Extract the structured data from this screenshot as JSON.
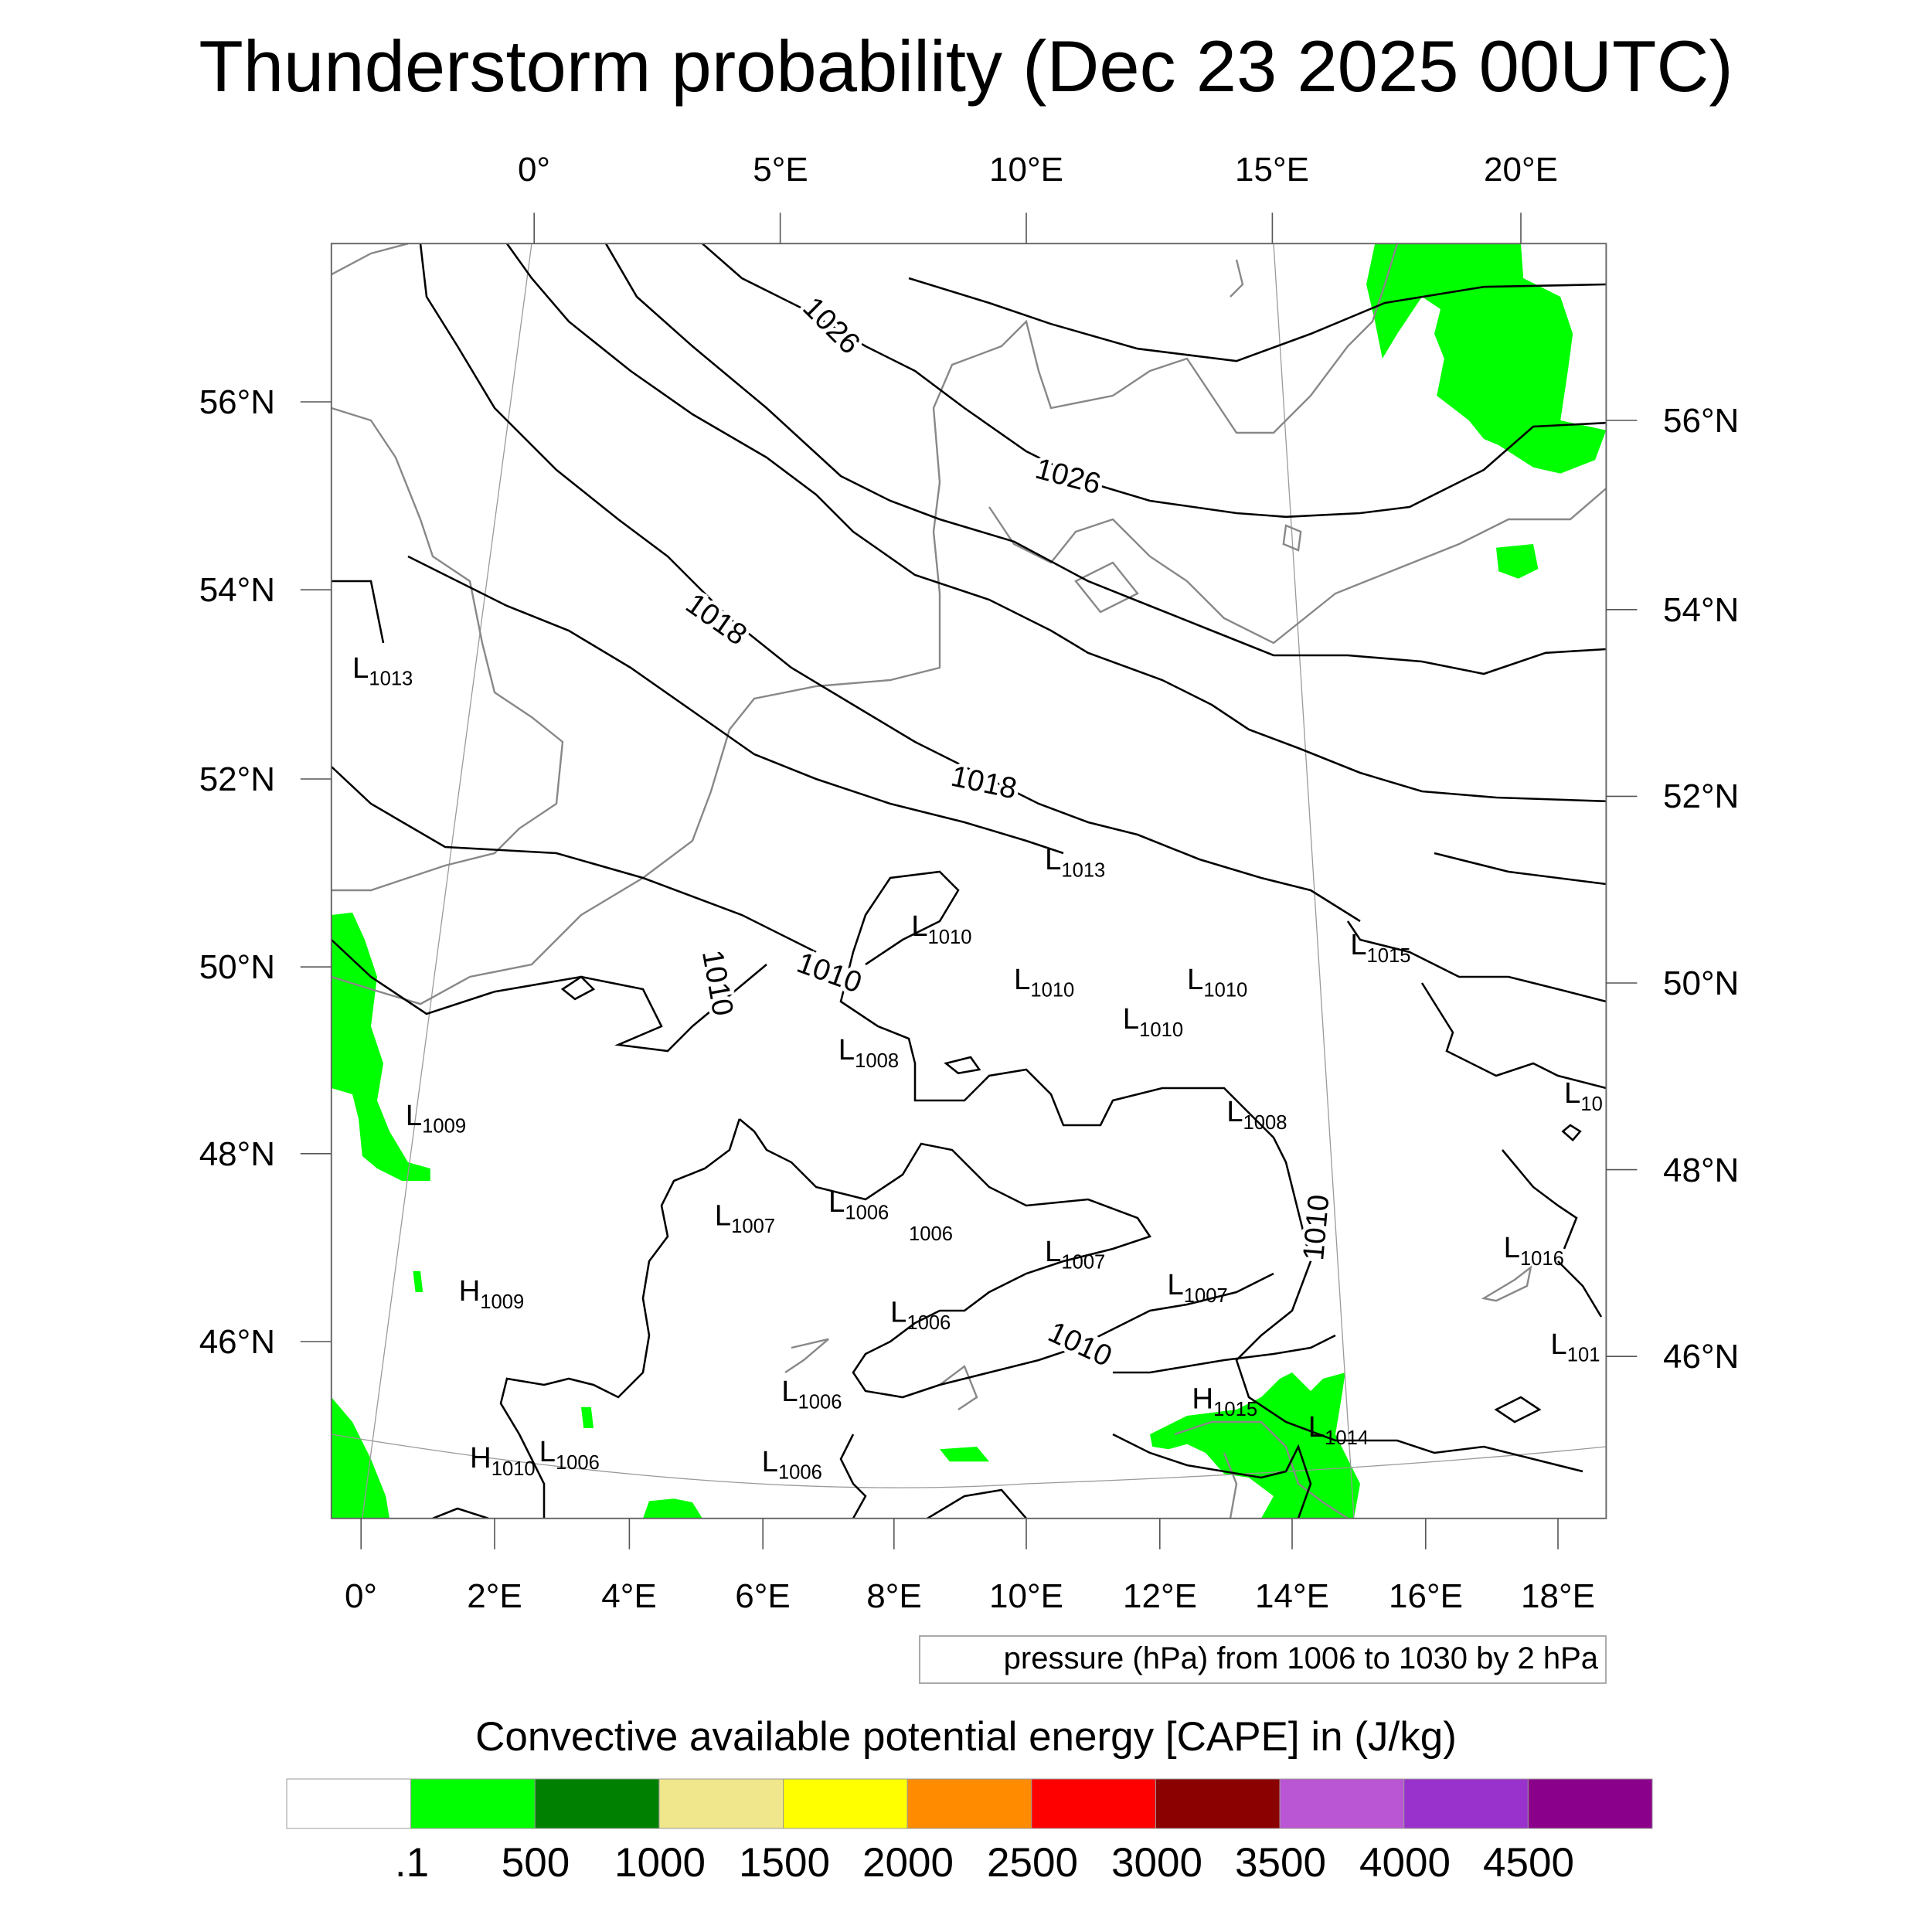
{
  "title": "Thunderstorm probability (Dec 23 2025 00UTC)",
  "axes": {
    "top_lon": [
      "0°",
      "5°E",
      "10°E",
      "15°E",
      "20°E"
    ],
    "left_lat": [
      "56°N",
      "54°N",
      "52°N",
      "50°N",
      "48°N",
      "46°N"
    ],
    "right_lat": [
      "56°N",
      "54°N",
      "52°N",
      "50°N",
      "48°N",
      "46°N"
    ],
    "bottom_lon": [
      "0°",
      "2°E",
      "4°E",
      "6°E",
      "8°E",
      "10°E",
      "12°E",
      "14°E",
      "16°E",
      "18°E"
    ]
  },
  "contour_labels": [
    "1026",
    "1026",
    "1018",
    "1018",
    "1010",
    "1010",
    "1010",
    "1010"
  ],
  "pressure_systems": [
    {
      "type": "L",
      "value": "1013"
    },
    {
      "type": "L",
      "value": "1013"
    },
    {
      "type": "L",
      "value": "1010"
    },
    {
      "type": "L",
      "value": "1015"
    },
    {
      "type": "L",
      "value": "1010"
    },
    {
      "type": "L",
      "value": "1010"
    },
    {
      "type": "L",
      "value": "1010"
    },
    {
      "type": "L",
      "value": "1008"
    },
    {
      "type": "L",
      "value": "1008"
    },
    {
      "type": "L",
      "value": "10"
    },
    {
      "type": "L",
      "value": "1009"
    },
    {
      "type": "L",
      "value": "1007"
    },
    {
      "type": "L",
      "value": "1006"
    },
    {
      "type": "",
      "value": "1006"
    },
    {
      "type": "L",
      "value": "1007"
    },
    {
      "type": "L",
      "value": "1016"
    },
    {
      "type": "L",
      "value": "1007"
    },
    {
      "type": "H",
      "value": "1009"
    },
    {
      "type": "L",
      "value": "1006"
    },
    {
      "type": "L",
      "value": "101"
    },
    {
      "type": "L",
      "value": "1006"
    },
    {
      "type": "H",
      "value": "1015"
    },
    {
      "type": "L",
      "value": "1014"
    },
    {
      "type": "H",
      "value": "1010"
    },
    {
      "type": "L",
      "value": "1006"
    },
    {
      "type": "L",
      "value": "1006"
    }
  ],
  "pressure_note": "pressure (hPa) from 1006 to 1030 by 2 hPa",
  "colorbar": {
    "title": "Convective available potential energy [CAPE] in (J/kg)",
    "colors": [
      "#ffffff",
      "#00ff00",
      "#008000",
      "#f0e68c",
      "#ffff00",
      "#ff8c00",
      "#ff0000",
      "#8b0000",
      "#ba55d3",
      "#9932cc",
      "#8b008b"
    ],
    "labels": [
      ".1",
      "500",
      "1000",
      "1500",
      "2000",
      "2500",
      "3000",
      "3500",
      "4000",
      "4500"
    ]
  },
  "cape_color": "#00ff00"
}
